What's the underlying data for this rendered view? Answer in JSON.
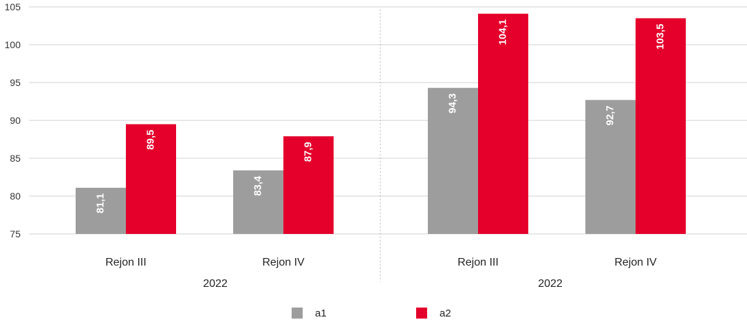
{
  "chart_data": {
    "type": "bar",
    "ylim": [
      75,
      105
    ],
    "yticks": [
      75,
      80,
      85,
      90,
      95,
      100,
      105
    ],
    "grid": true,
    "groups": [
      {
        "group_label": "2022",
        "categories": [
          "Rejon III",
          "Rejon IV"
        ],
        "series": [
          {
            "name": "a1",
            "values": [
              81.1,
              83.4
            ],
            "labels": [
              "81,1",
              "83,4"
            ]
          },
          {
            "name": "a2",
            "values": [
              89.5,
              87.9
            ],
            "labels": [
              "89,5",
              "87,9"
            ]
          }
        ]
      },
      {
        "group_label": "2022",
        "categories": [
          "Rejon III",
          "Rejon IV"
        ],
        "series": [
          {
            "name": "a1",
            "values": [
              94.3,
              92.7
            ],
            "labels": [
              "94,3",
              "92,7"
            ]
          },
          {
            "name": "a2",
            "values": [
              104.1,
              103.5
            ],
            "labels": [
              "104,1",
              "103,5"
            ]
          }
        ]
      }
    ],
    "legend": {
      "placement": "bottom",
      "items": [
        {
          "name": "a1",
          "color": "#9e9d9d"
        },
        {
          "name": "a2",
          "color": "#e4002b"
        }
      ]
    },
    "colors": {
      "a1": "#9e9d9d",
      "a2": "#e4002b"
    }
  }
}
